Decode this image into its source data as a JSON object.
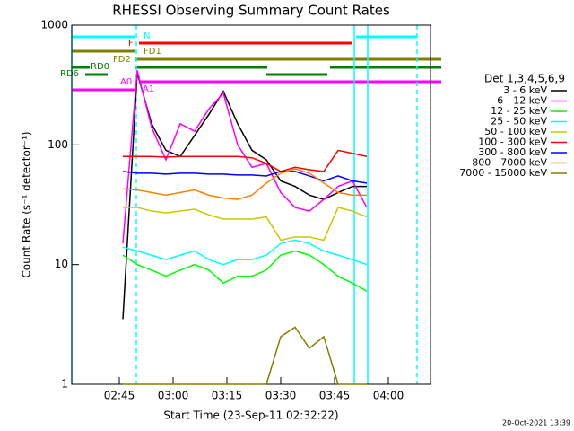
{
  "chart_data": {
    "type": "line",
    "title": "RHESSI Observing Summary Count Rates",
    "x_label": "Start Time (23-Sep-11 02:32:22)",
    "y_label": "Count Rate (s⁻¹ detector⁻¹)",
    "legend_title": "Det 1,3,4,5,6,9",
    "footer": "20-Oct-2021 13:39",
    "log_y": true,
    "xlim": [
      31.75,
      131.75
    ],
    "ylim": [
      1,
      1000
    ],
    "xticks": [
      {
        "value": 45,
        "label": "02:45"
      },
      {
        "value": 60,
        "label": "03:00"
      },
      {
        "value": 75,
        "label": "03:15"
      },
      {
        "value": 90,
        "label": "03:30"
      },
      {
        "value": 105,
        "label": "03:45"
      },
      {
        "value": 120,
        "label": "04:00"
      }
    ],
    "yticks": [
      1,
      10,
      100,
      1000
    ],
    "annotations": [
      "N",
      "F",
      "FD1",
      "FD2",
      "RD0",
      "RD6",
      "A0",
      "A1"
    ],
    "x": [
      46,
      50,
      54,
      58,
      62,
      66,
      70,
      74,
      78,
      82,
      86,
      90,
      94,
      98,
      102,
      106,
      110,
      114
    ],
    "series": [
      {
        "name": "3 - 6 keV",
        "color": "#000000",
        "values": [
          3.5,
          400,
          150,
          90,
          80,
          120,
          180,
          280,
          150,
          90,
          75,
          50,
          45,
          38,
          35,
          40,
          45,
          45
        ]
      },
      {
        "name": "6 - 12 keV",
        "color": "#ff00ff",
        "values": [
          15,
          420,
          140,
          75,
          150,
          130,
          200,
          270,
          100,
          65,
          70,
          40,
          30,
          28,
          35,
          45,
          50,
          30
        ]
      },
      {
        "name": "12 - 25 keV",
        "color": "#00ff00",
        "values": [
          12,
          10,
          9,
          8,
          9,
          10,
          9,
          7,
          8,
          8,
          9,
          12,
          13,
          12,
          10,
          8,
          7,
          6
        ]
      },
      {
        "name": "25 - 50 keV",
        "color": "#00ffff",
        "values": [
          14,
          13,
          12,
          11,
          12,
          13,
          11,
          10,
          11,
          11,
          12,
          15,
          16,
          15,
          13,
          12,
          11,
          10
        ]
      },
      {
        "name": "50 - 100 keV",
        "color": "#c8c800",
        "values": [
          30,
          30,
          28,
          27,
          28,
          29,
          26,
          24,
          24,
          24,
          25,
          16,
          17,
          17,
          16,
          30,
          28,
          25
        ]
      },
      {
        "name": "100 - 300 keV",
        "color": "#ff0000",
        "values": [
          80,
          80,
          80,
          79,
          80,
          80,
          80,
          80,
          80,
          78,
          70,
          60,
          65,
          62,
          60,
          90,
          85,
          80
        ]
      },
      {
        "name": "300 - 800 keV",
        "color": "#0000ff",
        "values": [
          60,
          58,
          58,
          57,
          58,
          58,
          57,
          57,
          56,
          56,
          55,
          60,
          60,
          55,
          50,
          55,
          50,
          48
        ]
      },
      {
        "name": "800 - 7000 keV",
        "color": "#ff8000",
        "values": [
          43,
          42,
          40,
          38,
          40,
          42,
          38,
          36,
          35,
          38,
          48,
          58,
          63,
          58,
          48,
          40,
          38,
          38
        ]
      },
      {
        "name": "7000 - 15000 keV",
        "color": "#808000",
        "values": [
          1,
          1,
          1,
          1,
          1,
          1,
          1,
          1,
          1,
          1,
          1,
          2.5,
          3,
          2,
          2.5,
          1,
          1,
          1
        ]
      }
    ]
  }
}
